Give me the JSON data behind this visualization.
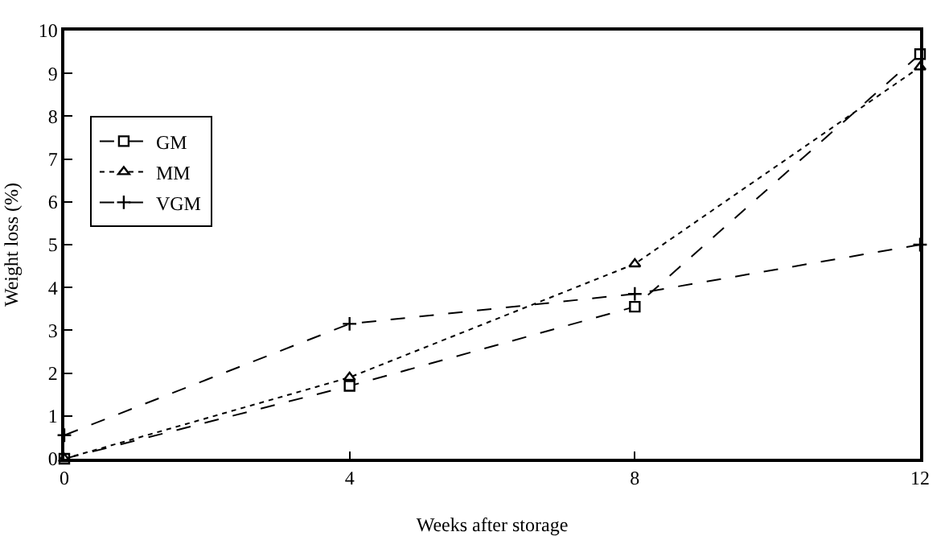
{
  "chart_data": {
    "type": "line",
    "xlabel": "Weeks after storage",
    "ylabel": "Weight loss (%)",
    "x": [
      0,
      4,
      8,
      12
    ],
    "xlim": [
      0,
      12
    ],
    "xticks": [
      0,
      4,
      8,
      12
    ],
    "ylim": [
      0,
      10
    ],
    "yticks": [
      0,
      1,
      2,
      3,
      4,
      5,
      6,
      7,
      8,
      9,
      10
    ],
    "grid": false,
    "legend": "top left",
    "series": [
      {
        "name": "GM",
        "color": "#000000",
        "values": [
          0,
          1.7,
          3.55,
          9.45
        ],
        "marker": "square",
        "line_style": "dashed"
      },
      {
        "name": "MM",
        "color": "#000000",
        "values": [
          0,
          1.9,
          4.55,
          9.15
        ],
        "marker": "triangle",
        "line_style": "dotted"
      },
      {
        "name": "VGM",
        "color": "#000000",
        "values": [
          0.55,
          3.15,
          3.85,
          5.0
        ],
        "marker": "cross",
        "line_style": "dashed"
      }
    ]
  }
}
